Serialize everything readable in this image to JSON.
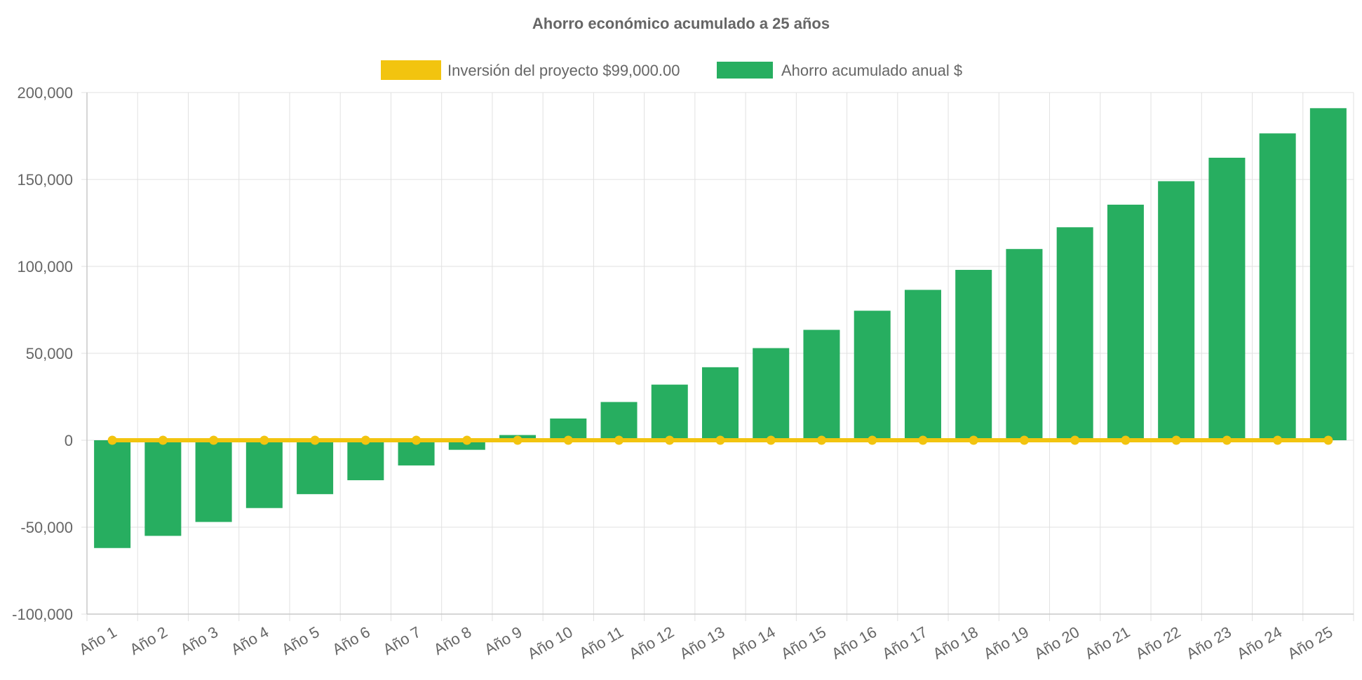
{
  "chart_data": {
    "type": "bar",
    "title": "Ahorro económico acumulado a 25 años",
    "categories": [
      "Año 1",
      "Año 2",
      "Año 3",
      "Año 4",
      "Año 5",
      "Año 6",
      "Año 7",
      "Año 8",
      "Año 9",
      "Año 10",
      "Año 11",
      "Año 12",
      "Año 13",
      "Año 14",
      "Año 15",
      "Año 16",
      "Año 17",
      "Año 18",
      "Año 19",
      "Año 20",
      "Año 21",
      "Año 22",
      "Año 23",
      "Año 24",
      "Año 25"
    ],
    "series": [
      {
        "name": "Inversión del proyecto $99,000.00",
        "type": "line",
        "color": "#f2c40f",
        "values": [
          0,
          0,
          0,
          0,
          0,
          0,
          0,
          0,
          0,
          0,
          0,
          0,
          0,
          0,
          0,
          0,
          0,
          0,
          0,
          0,
          0,
          0,
          0,
          0,
          0
        ]
      },
      {
        "name": "Ahorro acumulado anual $",
        "type": "bar",
        "color": "#27ae60",
        "values": [
          -62000,
          -55000,
          -47000,
          -39000,
          -31000,
          -23000,
          -14500,
          -5500,
          3000,
          12500,
          22000,
          32000,
          42000,
          53000,
          63500,
          74500,
          86500,
          98000,
          110000,
          122500,
          135500,
          149000,
          162500,
          176500,
          191000
        ]
      }
    ],
    "ylim": [
      -100000,
      200000
    ],
    "yticks": [
      "200,000",
      "150,000",
      "100,000",
      "50,000",
      "0",
      "-50,000",
      "-100,000"
    ],
    "ytick_values": [
      200000,
      150000,
      100000,
      50000,
      0,
      -50000,
      -100000
    ],
    "xlabel": "",
    "ylabel": "",
    "grid": true,
    "legend_position": "top-center"
  }
}
